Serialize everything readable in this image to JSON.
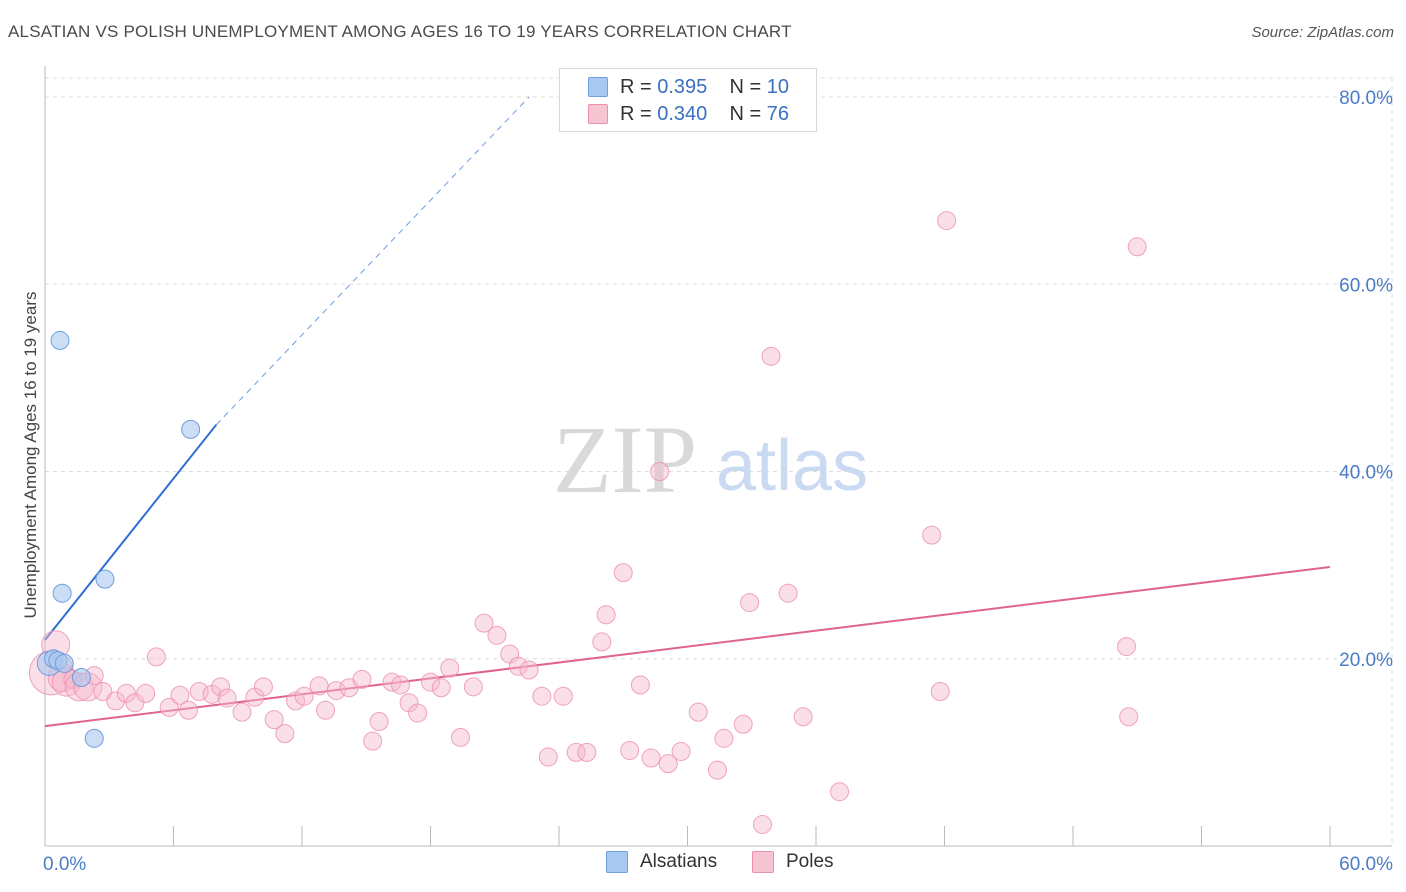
{
  "title": "ALSATIAN VS POLISH UNEMPLOYMENT AMONG AGES 16 TO 19 YEARS CORRELATION CHART",
  "source": "Source: ZipAtlas.com",
  "watermark": {
    "zip": "ZIP",
    "atlas": "atlas"
  },
  "colors": {
    "blue_fill": "#a9c8f0",
    "blue_stroke": "#6d9ee0",
    "blue_line": "#2d6fd1",
    "pink_fill": "#f6b8cb",
    "pink_stroke": "#ec8fad",
    "pink_line": "#e0638f",
    "axis_text": "#4a7cc7",
    "grid": "#dddddd"
  },
  "legend": {
    "rows": [
      {
        "r_label": "R = ",
        "r_value": "0.395",
        "n_label": "N = ",
        "n_value": "10"
      },
      {
        "r_label": "R = ",
        "r_value": "0.340",
        "n_label": "N = ",
        "n_value": "76"
      }
    ],
    "bottom": [
      {
        "label": "Alsatians"
      },
      {
        "label": "Poles"
      }
    ]
  },
  "chart_data": {
    "type": "scatter",
    "xlabel": "",
    "ylabel": "Unemployment Among Ages 16 to 19 years",
    "xlim": [
      0,
      60
    ],
    "ylim": [
      0,
      80
    ],
    "x_tick_labels": [
      {
        "value": 0,
        "label": "0.0%"
      },
      {
        "value": 60,
        "label": "60.0%"
      }
    ],
    "y_tick_labels": [
      {
        "value": 20,
        "label": "20.0%"
      },
      {
        "value": 40,
        "label": "40.0%"
      },
      {
        "value": 60,
        "label": "60.0%"
      },
      {
        "value": 80,
        "label": "80.0%"
      }
    ],
    "grid": "horizontal dashed",
    "series": [
      {
        "name": "Alsatians",
        "r": 0.395,
        "n": 10,
        "trend": {
          "x": [
            0,
            8
          ],
          "y": [
            22.0,
            45.0
          ],
          "dashed_to": [
            22.6,
            80
          ]
        },
        "points": [
          [
            0.2,
            19.5
          ],
          [
            0.4,
            20.0
          ],
          [
            0.6,
            19.8
          ],
          [
            0.7,
            54.0
          ],
          [
            0.8,
            27.0
          ],
          [
            0.9,
            19.5
          ],
          [
            1.7,
            18.0
          ],
          [
            2.3,
            11.5
          ],
          [
            2.8,
            28.5
          ],
          [
            6.8,
            44.5
          ]
        ]
      },
      {
        "name": "Poles",
        "r": 0.34,
        "n": 76,
        "trend": {
          "x": [
            0,
            60
          ],
          "y": [
            12.8,
            29.8
          ]
        },
        "points": [
          [
            0.3,
            18.5
          ],
          [
            0.5,
            21.5
          ],
          [
            0.8,
            18.0
          ],
          [
            1.0,
            17.5
          ],
          [
            1.3,
            17.8
          ],
          [
            1.6,
            17.0
          ],
          [
            2.0,
            17.0
          ],
          [
            2.3,
            18.2
          ],
          [
            2.7,
            16.5
          ],
          [
            3.3,
            15.5
          ],
          [
            3.8,
            16.3
          ],
          [
            4.2,
            15.3
          ],
          [
            4.7,
            16.3
          ],
          [
            5.2,
            20.2
          ],
          [
            5.8,
            14.8
          ],
          [
            6.3,
            16.1
          ],
          [
            6.7,
            14.5
          ],
          [
            7.2,
            16.5
          ],
          [
            7.8,
            16.2
          ],
          [
            8.2,
            17.0
          ],
          [
            8.5,
            15.8
          ],
          [
            9.2,
            14.3
          ],
          [
            9.8,
            15.9
          ],
          [
            10.2,
            17.0
          ],
          [
            10.7,
            13.5
          ],
          [
            11.2,
            12.0
          ],
          [
            11.7,
            15.5
          ],
          [
            12.1,
            16.0
          ],
          [
            12.8,
            17.1
          ],
          [
            13.1,
            14.5
          ],
          [
            13.6,
            16.6
          ],
          [
            14.2,
            16.9
          ],
          [
            14.8,
            17.8
          ],
          [
            15.3,
            11.2
          ],
          [
            15.6,
            13.3
          ],
          [
            16.2,
            17.5
          ],
          [
            16.6,
            17.2
          ],
          [
            17.0,
            15.3
          ],
          [
            17.4,
            14.2
          ],
          [
            18.0,
            17.5
          ],
          [
            18.5,
            16.9
          ],
          [
            18.9,
            19.0
          ],
          [
            19.4,
            11.6
          ],
          [
            20.0,
            17.0
          ],
          [
            20.5,
            23.8
          ],
          [
            21.1,
            22.5
          ],
          [
            21.7,
            20.5
          ],
          [
            22.1,
            19.2
          ],
          [
            22.6,
            18.8
          ],
          [
            23.2,
            16.0
          ],
          [
            23.5,
            9.5
          ],
          [
            24.2,
            16.0
          ],
          [
            24.8,
            10.0
          ],
          [
            25.3,
            10.0
          ],
          [
            26.0,
            21.8
          ],
          [
            26.2,
            24.7
          ],
          [
            27.0,
            29.2
          ],
          [
            27.3,
            10.2
          ],
          [
            27.8,
            17.2
          ],
          [
            28.3,
            9.4
          ],
          [
            28.7,
            40.0
          ],
          [
            29.1,
            8.8
          ],
          [
            29.7,
            10.1
          ],
          [
            30.5,
            14.3
          ],
          [
            31.4,
            8.1
          ],
          [
            31.7,
            11.5
          ],
          [
            32.6,
            13.0
          ],
          [
            32.9,
            26.0
          ],
          [
            33.5,
            2.3
          ],
          [
            33.9,
            52.3
          ],
          [
            34.7,
            27.0
          ],
          [
            35.4,
            13.8
          ],
          [
            37.1,
            5.8
          ],
          [
            41.4,
            33.2
          ],
          [
            41.8,
            16.5
          ],
          [
            42.1,
            66.8
          ]
        ],
        "extra_points": [
          [
            51.0,
            64.0
          ],
          [
            50.5,
            21.3
          ],
          [
            50.6,
            13.8
          ]
        ]
      }
    ]
  }
}
